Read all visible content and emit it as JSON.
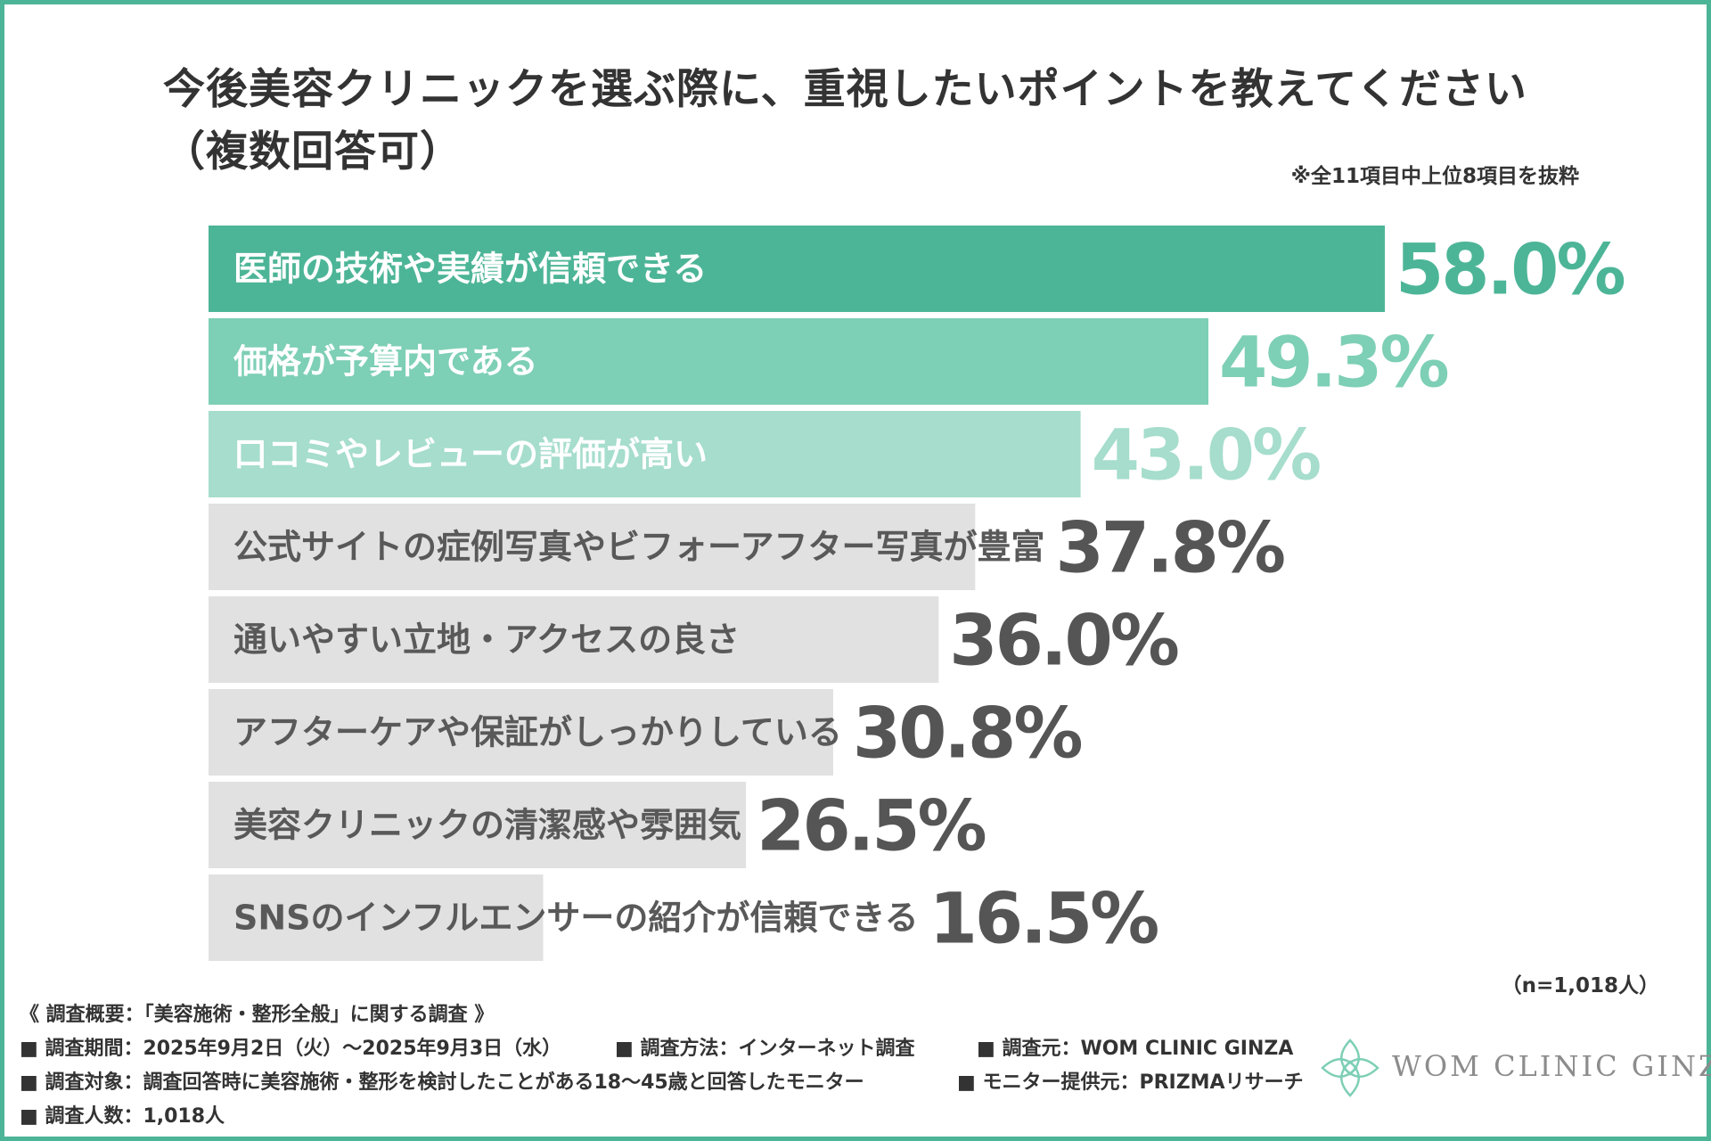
{
  "title": "今後美容クリニックを選ぶ際に、重視したいポイントを教えてください",
  "subtitle": "（複数回答可）",
  "note": "※全11項目中上位8項目を抜粋",
  "sample_note": "（n=1,018人）",
  "colors": {
    "frame": "#4db597",
    "rank1": "#4db597",
    "rank2": "#7dcfb5",
    "rank3": "#a6ddcc",
    "rest": "#e1e1e1",
    "rest_label": "#595959",
    "rest_value": "#555555"
  },
  "chart_data": {
    "type": "bar",
    "orientation": "horizontal",
    "categories": [
      "医師の技術や実績が信頼できる",
      "価格が予算内である",
      "口コミやレビューの評価が高い",
      "公式サイトの症例写真やビフォーアフター写真が豊富",
      "通いやすい立地・アクセスの良さ",
      "アフターケアや保証がしっかりしている",
      "美容クリニックの清潔感や雰囲気",
      "SNSのインフルエンサーの紹介が信頼できる"
    ],
    "values": [
      58.0,
      49.3,
      43.0,
      37.8,
      36.0,
      30.8,
      26.5,
      16.5
    ],
    "value_labels": [
      "58.0%",
      "49.3%",
      "43.0%",
      "37.8%",
      "36.0%",
      "30.8%",
      "26.5%",
      "16.5%"
    ],
    "unit": "%",
    "xlim": [
      0,
      58.0
    ],
    "grid": false,
    "legend": "none"
  },
  "footer": {
    "heading": "《 調査概要：「美容施術・整形全般」に関する調査 》",
    "period": "■ 調査期間：2025年9月2日（火）～2025年9月3日（水）",
    "method": "■ 調査方法：インターネット調査",
    "source": "■ 調査元：WOM CLINIC GINZA",
    "target": "■ 調査対象：調査回答時に美容施術・整形を検討したことがある18～45歳と回答したモニター",
    "provider": "■ モニター提供元：PRIZMAリサーチ",
    "count": "■ 調査人数：1,018人"
  },
  "logo": {
    "text": "WOM CLINIC GINZA",
    "icon": "lotus-emblem-icon"
  }
}
